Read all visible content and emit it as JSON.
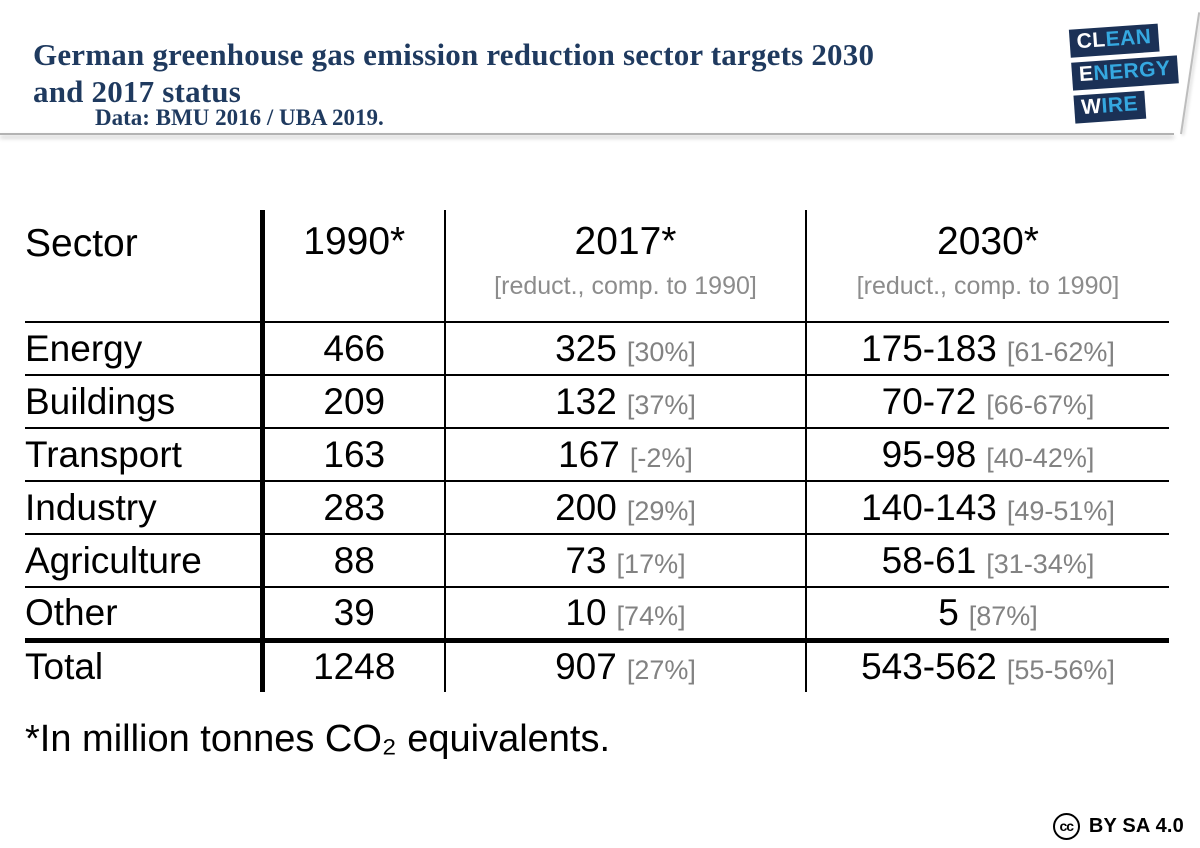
{
  "header": {
    "title_lines": [
      "German greenhouse gas emission reduction sector targets 2030",
      "and 2017 status"
    ],
    "subtitle": "Data: BMU 2016 / UBA 2019.",
    "title_color": "#1f3a5f"
  },
  "logo": {
    "name": "Clean Energy Wire",
    "block_color": "#1b3156",
    "accent_color": "#35a8e0",
    "lines": [
      {
        "white": "CL",
        "blue": "EAN"
      },
      {
        "white": "E",
        "blue": "NERGY"
      },
      {
        "white": "W",
        "blue": "IRE"
      }
    ]
  },
  "table": {
    "headers": {
      "sector": "Sector",
      "y1990": "1990*",
      "y2017": "2017*",
      "y2017_sub": "[reduct., comp. to 1990]",
      "y2030": "2030*",
      "y2030_sub": "[reduct., comp. to 1990]"
    },
    "rows": [
      {
        "sector": "Energy",
        "v1990": "466",
        "v2017": "325",
        "r2017": "[30%]",
        "v2030": "175-183",
        "r2030": "[61-62%]"
      },
      {
        "sector": "Buildings",
        "v1990": "209",
        "v2017": "132",
        "r2017": "[37%]",
        "v2030": "70-72",
        "r2030": "[66-67%]"
      },
      {
        "sector": "Transport",
        "v1990": "163",
        "v2017": "167",
        "r2017": "[-2%]",
        "v2030": "95-98",
        "r2030": "[40-42%]"
      },
      {
        "sector": "Industry",
        "v1990": "283",
        "v2017": "200",
        "r2017": "[29%]",
        "v2030": "140-143",
        "r2030": "[49-51%]"
      },
      {
        "sector": "Agriculture",
        "v1990": "88",
        "v2017": "73",
        "r2017": "[17%]",
        "v2030": "58-61",
        "r2030": "[31-34%]"
      },
      {
        "sector": "Other",
        "v1990": "39",
        "v2017": "10",
        "r2017": "[74%]",
        "v2030": "5",
        "r2030": "[87%]"
      }
    ],
    "total": {
      "sector": "Total",
      "v1990": "1248",
      "v2017": "907",
      "r2017": "[27%]",
      "v2030": "543-562",
      "r2030": "[55-56%]"
    },
    "bracket_color": "#828282"
  },
  "footnote": "*In million tonnes CO₂ equivalents.",
  "license": {
    "icon_text": "cc",
    "label": "BY SA 4.0"
  },
  "chart_data": {
    "type": "table",
    "title": "German greenhouse gas emission reduction sector targets 2030 and 2017 status",
    "subtitle": "Data: BMU 2016 / UBA 2019.",
    "unit": "million tonnes CO2 equivalents",
    "columns": [
      "Sector",
      "1990*",
      "2017* [reduct., comp. to 1990]",
      "2030* [reduct., comp. to 1990]"
    ],
    "rows": [
      {
        "sector": "Energy",
        "y1990": 466,
        "y2017": 325,
        "y2017_reduction": "30%",
        "y2030": "175-183",
        "y2030_reduction": "61-62%"
      },
      {
        "sector": "Buildings",
        "y1990": 209,
        "y2017": 132,
        "y2017_reduction": "37%",
        "y2030": "70-72",
        "y2030_reduction": "66-67%"
      },
      {
        "sector": "Transport",
        "y1990": 163,
        "y2017": 167,
        "y2017_reduction": "-2%",
        "y2030": "95-98",
        "y2030_reduction": "40-42%"
      },
      {
        "sector": "Industry",
        "y1990": 283,
        "y2017": 200,
        "y2017_reduction": "29%",
        "y2030": "140-143",
        "y2030_reduction": "49-51%"
      },
      {
        "sector": "Agriculture",
        "y1990": 88,
        "y2017": 73,
        "y2017_reduction": "17%",
        "y2030": "58-61",
        "y2030_reduction": "31-34%"
      },
      {
        "sector": "Other",
        "y1990": 39,
        "y2017": 10,
        "y2017_reduction": "74%",
        "y2030": "5",
        "y2030_reduction": "87%"
      },
      {
        "sector": "Total",
        "y1990": 1248,
        "y2017": 907,
        "y2017_reduction": "27%",
        "y2030": "543-562",
        "y2030_reduction": "55-56%"
      }
    ],
    "footnote": "*In million tonnes CO2 equivalents."
  }
}
